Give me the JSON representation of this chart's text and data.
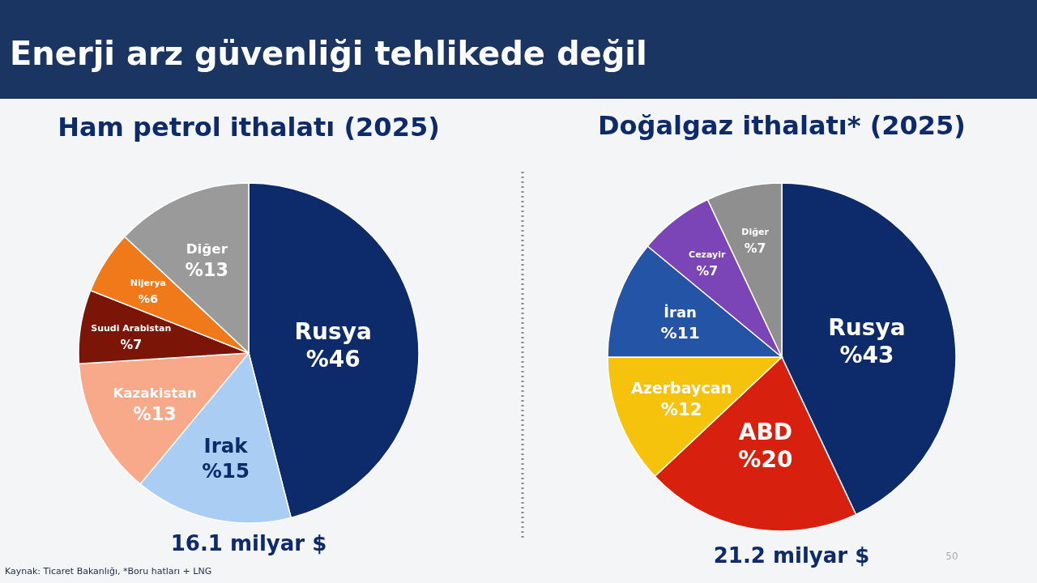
{
  "chart_data": [
    {
      "type": "pie",
      "title": "Ham petrol ithalatı (2025)",
      "categories": [
        "Rusya",
        "Irak",
        "Kazakistan",
        "Suudi Arabistan",
        "Nijerya",
        "Diğer"
      ],
      "values": [
        46,
        15,
        13,
        7,
        6,
        13
      ],
      "value_labels": [
        "%46",
        "%15",
        "%13",
        "%7",
        "%6",
        "%13"
      ],
      "colors": [
        "#0d2a6b",
        "#a9cdf3",
        "#f7a98a",
        "#7a1508",
        "#f07a1a",
        "#9a9a9a"
      ],
      "annotations": [
        "16.1 milyar $",
        "Kaynak: Ticaret Bakanlığı, *Boru hatları + LNG",
        "Enerji arz güvenliği tehlikede değil"
      ]
    },
    {
      "type": "pie",
      "title": "Doğalgaz ithalatı* (2025)",
      "categories": [
        "Rusya",
        "ABD",
        "Azerbaycan",
        "İran",
        "Cezayir",
        "Diğer"
      ],
      "values": [
        43,
        20,
        12,
        11,
        7,
        7
      ],
      "value_labels": [
        "%43",
        "%20",
        "%12",
        "%11",
        "%7",
        "%7"
      ],
      "colors": [
        "#0d2a6b",
        "#d8200f",
        "#f5c20c",
        "#2354a5",
        "#7b45b8",
        "#8f8f8f"
      ],
      "annotations": [
        "21.2 milyar $",
        "50"
      ]
    }
  ]
}
